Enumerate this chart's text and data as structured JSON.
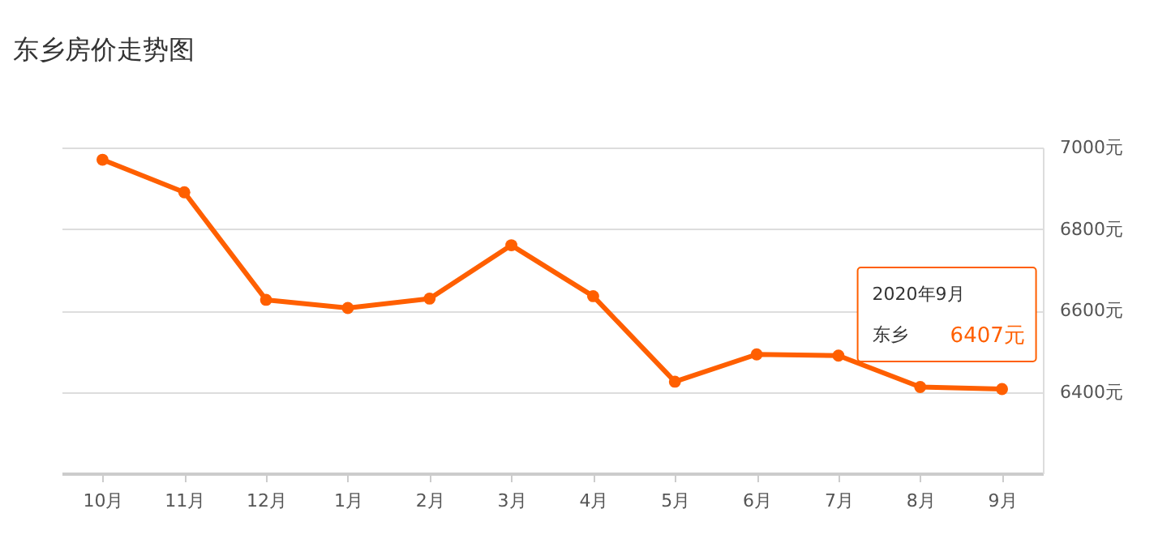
{
  "chart_data": {
    "type": "line",
    "title": "东乡房价走势图",
    "categories": [
      "10月",
      "11月",
      "12月",
      "1月",
      "2月",
      "3月",
      "4月",
      "5月",
      "6月",
      "7月",
      "8月",
      "9月"
    ],
    "series": [
      {
        "name": "东乡",
        "color": "#ff5f00",
        "values": [
          6970,
          6890,
          6626,
          6606,
          6629,
          6760,
          6635,
          6425,
          6492,
          6489,
          6412,
          6407
        ],
        "value_labels": [
          null,
          null,
          null,
          null,
          null,
          null,
          null,
          null,
          null,
          null,
          null,
          "6407元"
        ]
      }
    ],
    "ylim": [
      6200,
      7000
    ],
    "yticks": [
      {
        "value": 6400,
        "label": "6400元"
      },
      {
        "value": 6600,
        "label": "6600元"
      },
      {
        "value": 6800,
        "label": "6800元"
      },
      {
        "value": 7000,
        "label": "7000元"
      }
    ],
    "annotations": [
      "2020年9月"
    ],
    "grid": "y",
    "marker": "circle",
    "line_style": "solid"
  }
}
